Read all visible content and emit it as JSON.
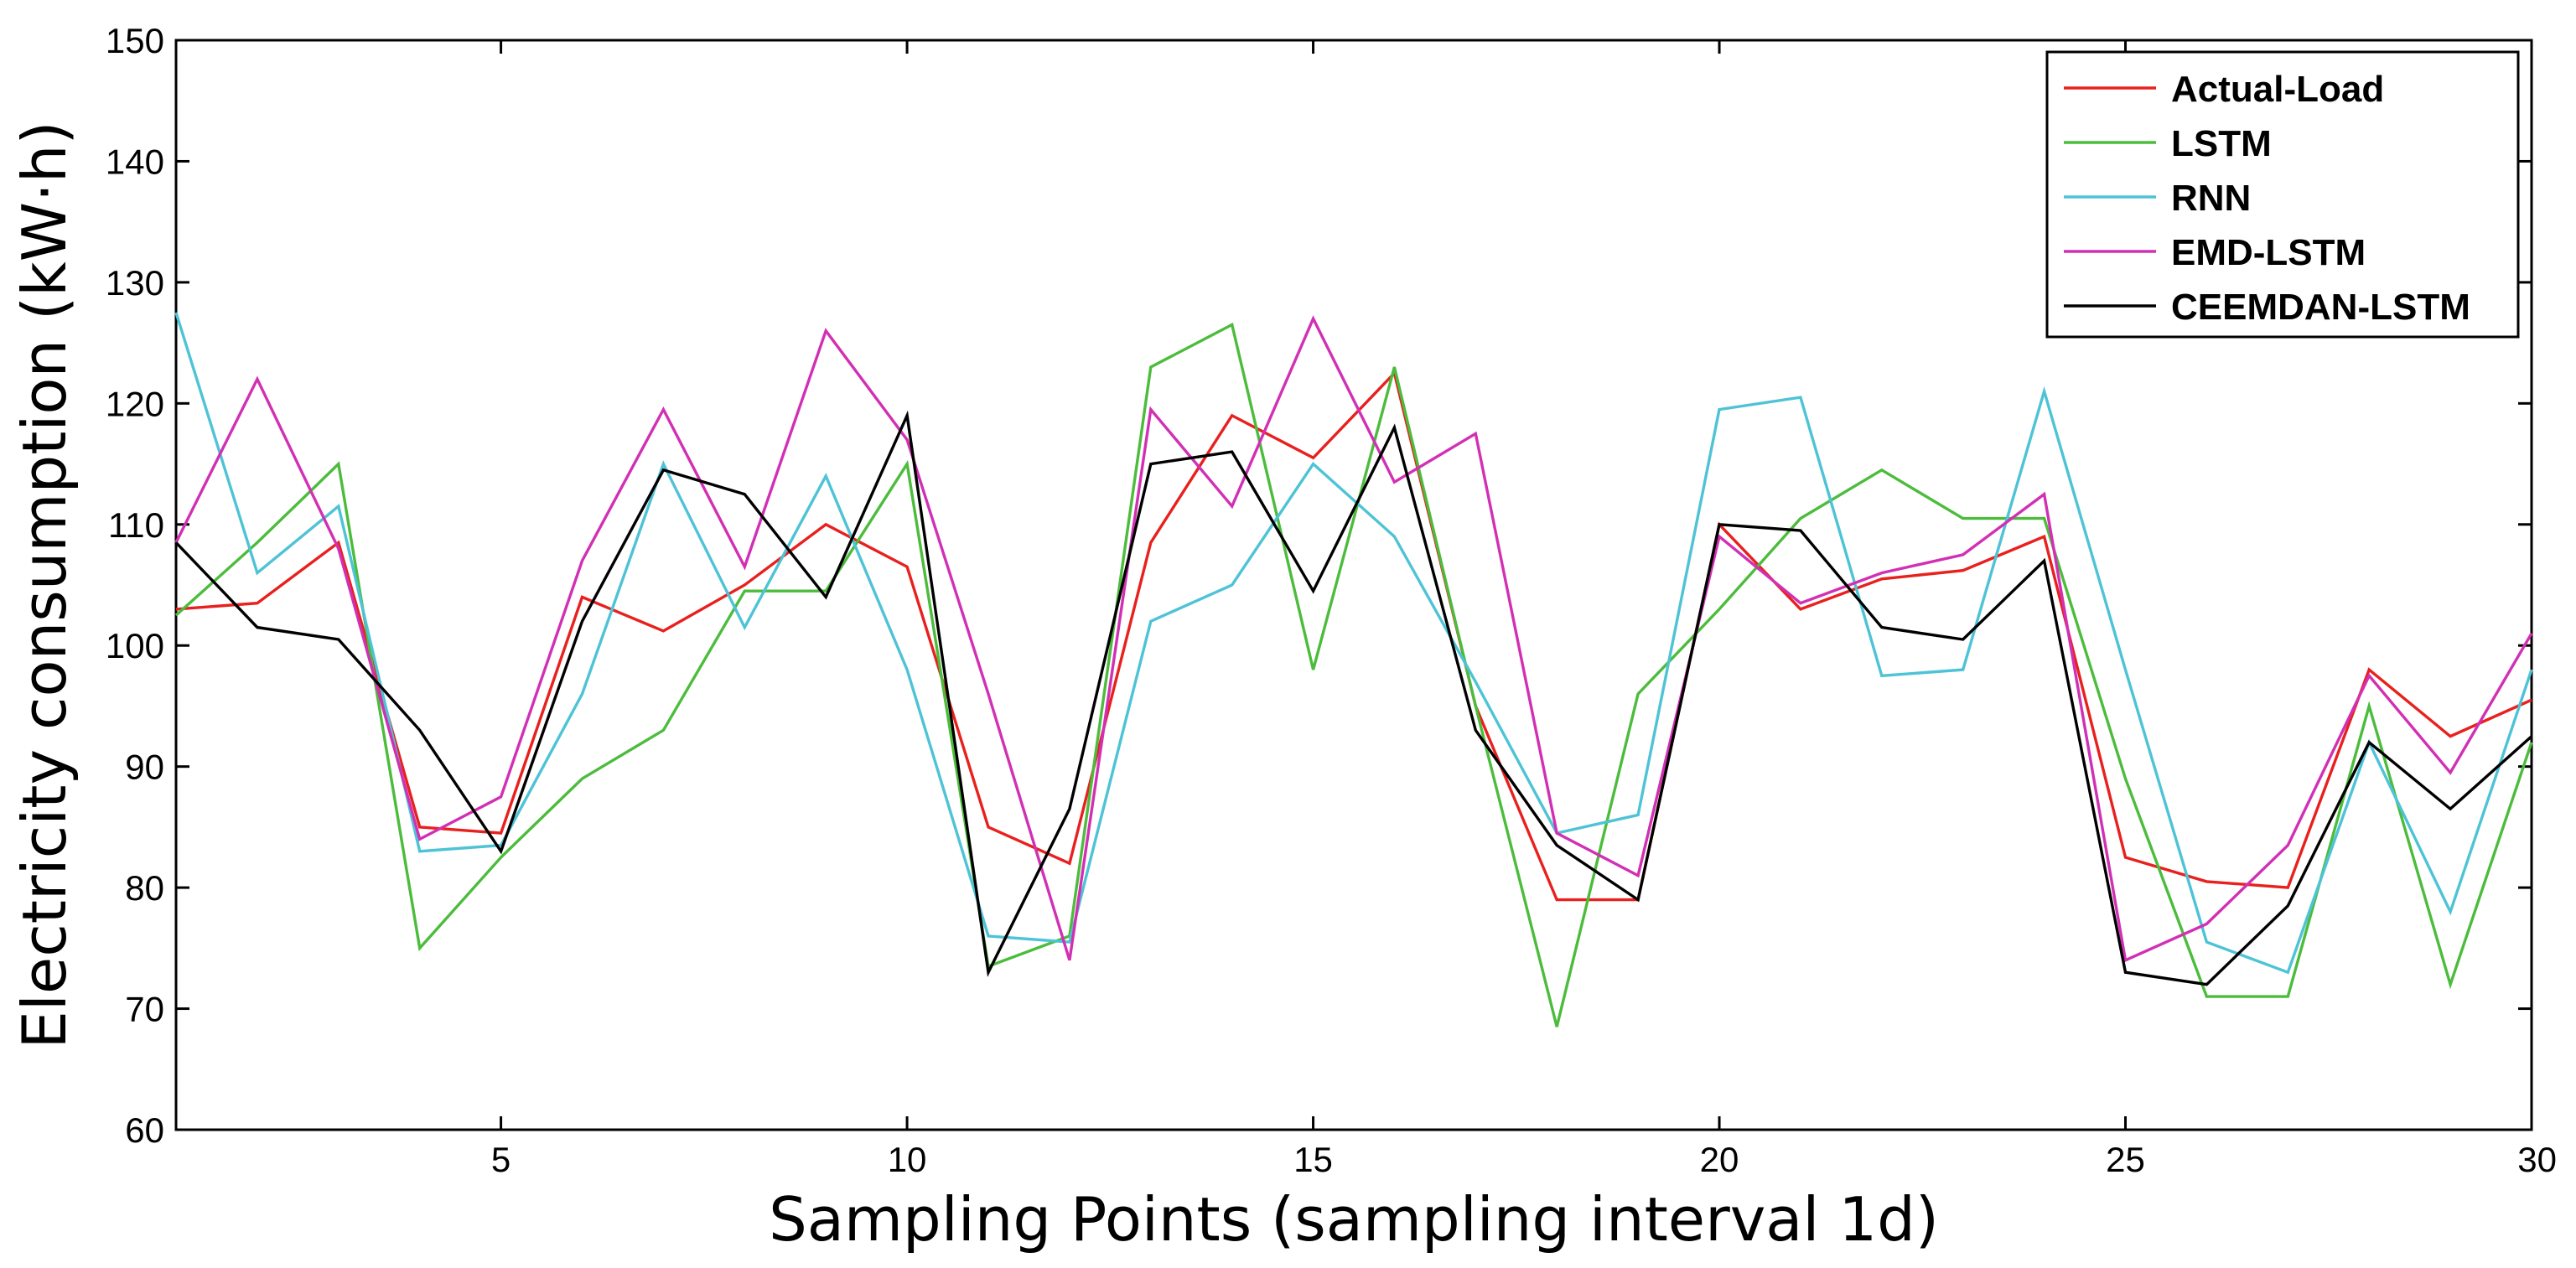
{
  "chart_data": {
    "type": "line",
    "title": "",
    "xlabel": "Sampling Points (sampling interval 1d)",
    "ylabel": "Electricity consumption (kW·h)",
    "xlim": [
      1,
      30
    ],
    "ylim": [
      60,
      150
    ],
    "xticks": [
      5,
      10,
      15,
      20,
      25,
      30
    ],
    "yticks": [
      60,
      70,
      80,
      90,
      100,
      110,
      120,
      130,
      140,
      150
    ],
    "xtick_labels": [
      "5",
      "10",
      "15",
      "20",
      "25",
      "30"
    ],
    "ytick_labels": [
      "60",
      "70",
      "80",
      "90",
      "100",
      "110",
      "120",
      "130",
      "140",
      "150"
    ],
    "grid": false,
    "legend_position": "top-right",
    "x": [
      1,
      2,
      3,
      4,
      5,
      6,
      7,
      8,
      9,
      10,
      11,
      12,
      13,
      14,
      15,
      16,
      17,
      18,
      19,
      20,
      21,
      22,
      23,
      24,
      25,
      26,
      27,
      28,
      29,
      30
    ],
    "series": [
      {
        "name": "Actual-Load",
        "color": "#e8201e",
        "values": [
          103,
          103.5,
          108.5,
          85,
          84.5,
          104,
          101.2,
          105,
          110,
          106.5,
          85,
          82,
          108.5,
          119,
          115.5,
          122.5,
          95,
          79,
          79,
          110,
          103,
          105.5,
          106.2,
          109,
          82.5,
          80.5,
          80,
          98,
          92.5,
          95.5
        ]
      },
      {
        "name": "LSTM",
        "color": "#4cbc3c",
        "values": [
          102.5,
          108.5,
          115,
          75,
          82.5,
          89,
          93,
          104.5,
          104.5,
          115,
          73.5,
          76,
          123,
          126.5,
          98,
          123,
          95,
          68.5,
          96,
          103,
          110.5,
          114.5,
          110.5,
          110.5,
          89,
          71,
          71,
          95,
          72,
          92
        ]
      },
      {
        "name": "RNN",
        "color": "#4ec3d6",
        "values": [
          127.5,
          106,
          111.5,
          83,
          83.5,
          96,
          115,
          101.5,
          114,
          98,
          76,
          75.5,
          102,
          105,
          115,
          109,
          97,
          84.5,
          86,
          119.5,
          120.5,
          97.5,
          98,
          121,
          98,
          75.5,
          73,
          92,
          78,
          98
        ]
      },
      {
        "name": "EMD-LSTM",
        "color": "#d230b4",
        "values": [
          108.5,
          122,
          108,
          84,
          87.5,
          107,
          119.5,
          106.5,
          126,
          117,
          96,
          74,
          119.5,
          111.5,
          127,
          113.5,
          117.5,
          84.5,
          81,
          109,
          103.5,
          106,
          107.5,
          112.5,
          74,
          77,
          83.5,
          97.5,
          89.5,
          101
        ]
      },
      {
        "name": "CEEMDAN-LSTM",
        "color": "#000000",
        "values": [
          108.5,
          101.5,
          100.5,
          93,
          83,
          102,
          114.5,
          112.5,
          104,
          119,
          73,
          86.5,
          115,
          116,
          104.5,
          118,
          93,
          83.5,
          79,
          110,
          109.5,
          101.5,
          100.5,
          107,
          73,
          72,
          78.5,
          92,
          86.5,
          92.5
        ]
      }
    ]
  }
}
